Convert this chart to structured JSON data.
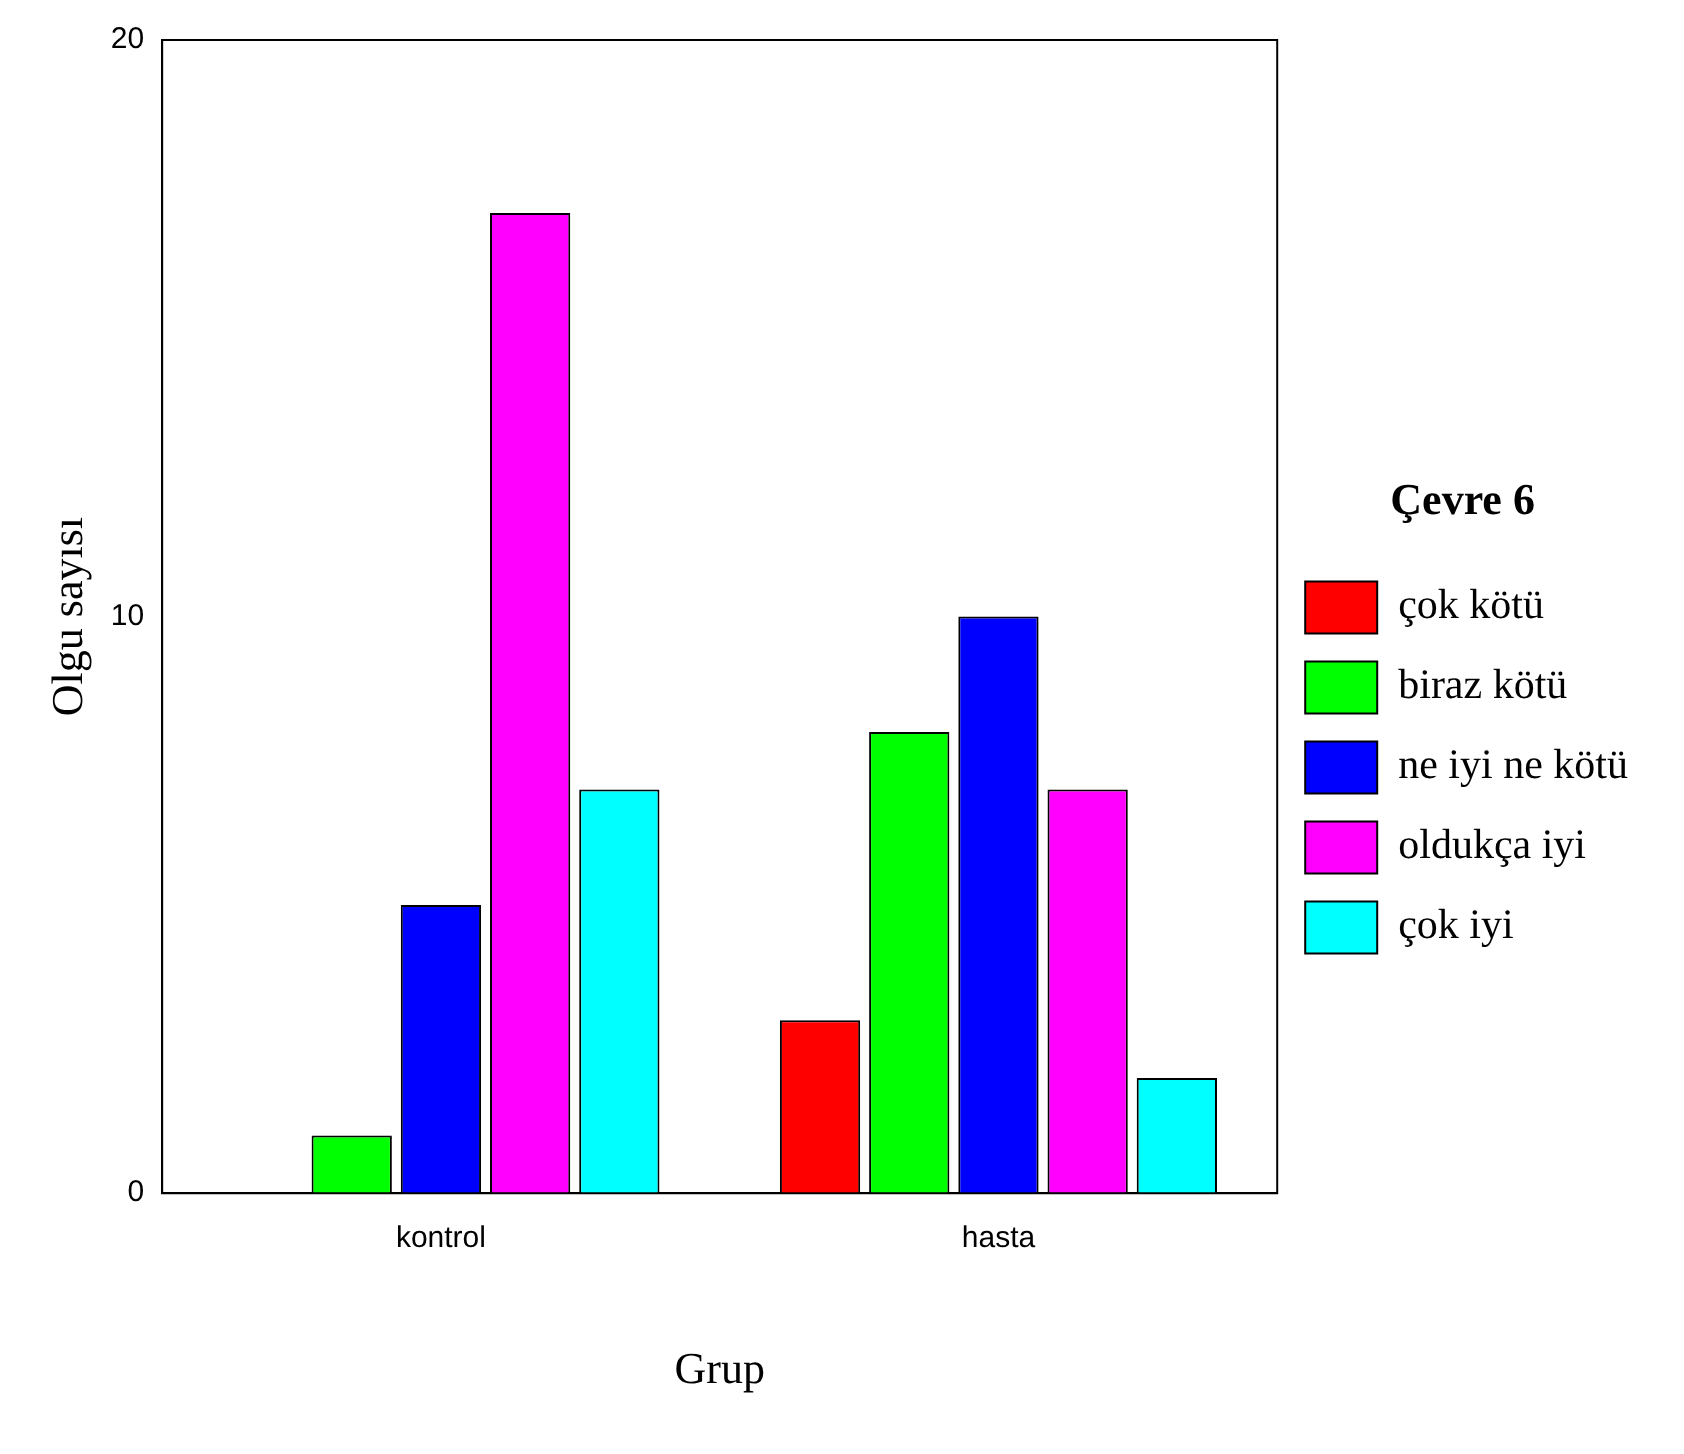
{
  "chart_data": {
    "type": "bar",
    "xlabel": "Grup",
    "ylabel": "Olgu sayısı",
    "legend_title": "Çevre 6",
    "categories": [
      "kontrol",
      "hasta"
    ],
    "series": [
      {
        "name": "çok kötü",
        "color": "#ff0000",
        "values": [
          0,
          3
        ]
      },
      {
        "name": "biraz kötü",
        "color": "#00ff00",
        "values": [
          1,
          8
        ]
      },
      {
        "name": "ne iyi ne kötü",
        "color": "#0000ff",
        "values": [
          5,
          10
        ]
      },
      {
        "name": "oldukça iyi",
        "color": "#ff00ff",
        "values": [
          17,
          7
        ]
      },
      {
        "name": "çok iyi",
        "color": "#00ffff",
        "values": [
          7,
          2
        ]
      }
    ],
    "ylim": [
      0,
      20
    ],
    "yticks": [
      0,
      10,
      20
    ],
    "grid": false,
    "legend": "right"
  }
}
